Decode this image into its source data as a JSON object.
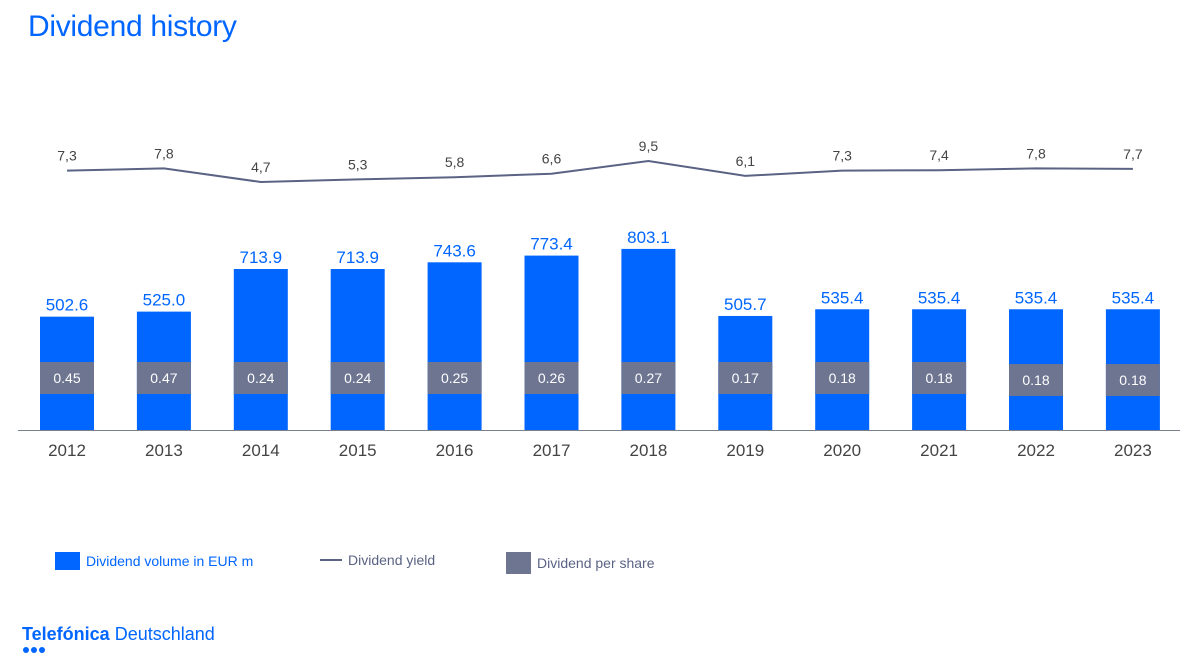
{
  "title": "Dividend history",
  "colors": {
    "volume": "#0066ff",
    "per_share": "#6d7591",
    "yield_line": "#5a6384",
    "axis_text": "#444444"
  },
  "legend": {
    "volume": "Dividend volume in EUR m",
    "yield": "Dividend yield",
    "per_share": "Dividend per share"
  },
  "brand": {
    "name_bold": "Telefónica",
    "name_regular": "Deutschland"
  },
  "chart_data": {
    "type": "bar",
    "title": "Dividend history",
    "categories": [
      "2012",
      "2013",
      "2014",
      "2015",
      "2016",
      "2017",
      "2018",
      "2019",
      "2020",
      "2021",
      "2022",
      "2023"
    ],
    "series": [
      {
        "name": "Dividend volume in EUR m",
        "type": "bar",
        "values": [
          502.6,
          525.0,
          713.9,
          713.9,
          743.6,
          773.4,
          803.1,
          505.7,
          535.4,
          535.4,
          535.4,
          535.4
        ],
        "labels": [
          "502.6",
          "525.0",
          "713.9",
          "713.9",
          "743.6",
          "773.4",
          "803.1",
          "505.7",
          "535.4",
          "535.4",
          "535.4",
          "535.4"
        ]
      },
      {
        "name": "Dividend yield",
        "type": "line",
        "values": [
          7.3,
          7.8,
          4.7,
          5.3,
          5.8,
          6.6,
          9.5,
          6.1,
          7.3,
          7.4,
          7.8,
          7.7
        ],
        "labels": [
          "7,3",
          "7,8",
          "4,7",
          "5,3",
          "5,8",
          "6,6",
          "9,5",
          "6,1",
          "7,3",
          "7,4",
          "7,8",
          "7,7"
        ]
      },
      {
        "name": "Dividend per share",
        "type": "label",
        "values": [
          0.45,
          0.47,
          0.24,
          0.24,
          0.25,
          0.26,
          0.27,
          0.17,
          0.18,
          0.18,
          0.18,
          0.18
        ],
        "labels": [
          "0.45",
          "0.47",
          "0.24",
          "0.24",
          "0.25",
          "0.26",
          "0.27",
          "0.17",
          "0.18",
          "0.18",
          "0.18",
          "0.18"
        ]
      }
    ],
    "grid": false,
    "legend_position": "bottom-left"
  }
}
